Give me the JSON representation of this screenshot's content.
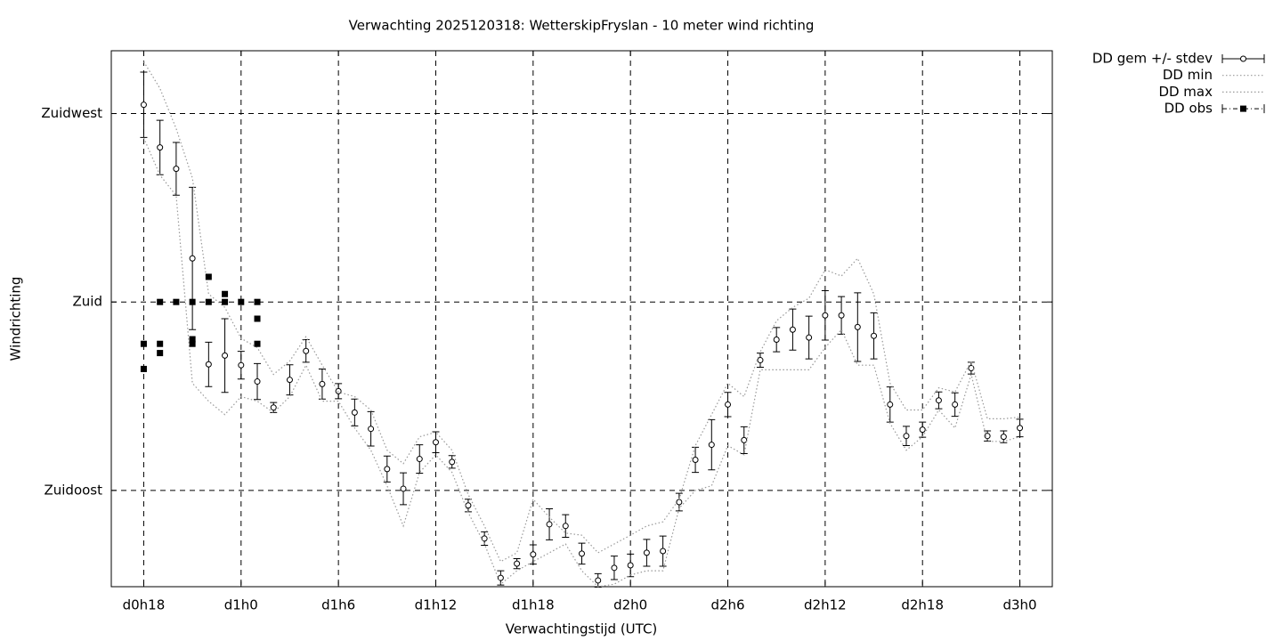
{
  "chart_data": {
    "type": "line",
    "title": "Verwachting 2025120318: WetterskipFryslan - 10 meter wind richting",
    "x_label": "Verwachtingstijd (UTC)",
    "y_label": "Windrichting",
    "xlim": [
      16,
      74
    ],
    "ylim": [
      112,
      240
    ],
    "xticks": [
      {
        "value": 18,
        "label": "d0h18"
      },
      {
        "value": 24,
        "label": "d1h0"
      },
      {
        "value": 30,
        "label": "d1h6"
      },
      {
        "value": 36,
        "label": "d1h12"
      },
      {
        "value": 42,
        "label": "d1h18"
      },
      {
        "value": 48,
        "label": "d2h0"
      },
      {
        "value": 54,
        "label": "d2h6"
      },
      {
        "value": 60,
        "label": "d2h12"
      },
      {
        "value": 66,
        "label": "d2h18"
      },
      {
        "value": 72,
        "label": "d3h0"
      }
    ],
    "yticks": [
      {
        "value": 135,
        "label": "Zuidoost"
      },
      {
        "value": 180,
        "label": "Zuid"
      },
      {
        "value": 225,
        "label": "Zuidwest"
      }
    ],
    "grid": true,
    "legend": "outside-top-right",
    "x": [
      18,
      19,
      20,
      21,
      22,
      23,
      24,
      25,
      26,
      27,
      28,
      29,
      30,
      31,
      32,
      33,
      34,
      35,
      36,
      37,
      38,
      39,
      40,
      41,
      42,
      43,
      44,
      45,
      46,
      47,
      48,
      49,
      50,
      51,
      52,
      53,
      54,
      55,
      56,
      57,
      58,
      59,
      60,
      61,
      62,
      63,
      64,
      65,
      66,
      67,
      68,
      69,
      70,
      71,
      72
    ],
    "series": [
      {
        "name": "DD gem +/- stdev",
        "color": "#000000",
        "style": "errorbars",
        "values": [
          227.1,
          216.9,
          211.8,
          190.4,
          165.1,
          167.2,
          164.9,
          161.0,
          154.8,
          161.4,
          168.3,
          160.4,
          158.7,
          153.6,
          149.7,
          140.1,
          135.4,
          142.5,
          146.5,
          141.8,
          131.4,
          123.5,
          114.1,
          117.5,
          119.7,
          126.9,
          126.5,
          119.9,
          113.5,
          116.5,
          117.1,
          120.1,
          120.5,
          132.2,
          142.3,
          145.9,
          155.5,
          147.0,
          166.1,
          171.0,
          173.4,
          171.5,
          176.8,
          176.8,
          174.0,
          171.9,
          155.5,
          148.0,
          149.5,
          156.5,
          155.5,
          164.2,
          148.0,
          147.8,
          149.9
        ],
        "errors": [
          7.8,
          6.5,
          6.3,
          17,
          5.3,
          8.8,
          3.3,
          4.3,
          1.2,
          3.6,
          2.7,
          3.6,
          1.8,
          3.2,
          4.1,
          3.1,
          3.8,
          3.4,
          2.5,
          1.5,
          1.5,
          1.6,
          1.7,
          1.2,
          2.3,
          3.7,
          2.7,
          2.5,
          1.6,
          2.8,
          2.7,
          3.2,
          3.6,
          2.1,
          3.0,
          6.0,
          2.9,
          3.2,
          1.7,
          2.9,
          4.9,
          5.1,
          5.9,
          4.5,
          8.2,
          5.5,
          4.2,
          2.3,
          1.8,
          2.0,
          2.8,
          1.4,
          1.2,
          1.4,
          2.1
        ]
      },
      {
        "name": "DD min",
        "color": "#999999",
        "style": "dotted",
        "values": [
          219.2,
          210.3,
          205.4,
          160.6,
          156.3,
          153.1,
          157.4,
          156.3,
          153.6,
          157.4,
          164.9,
          156.3,
          156.3,
          149.9,
          144.6,
          136.1,
          126.5,
          139.3,
          143.5,
          139.3,
          129.7,
          122.2,
          112.6,
          115.8,
          118,
          120.1,
          122.2,
          115.8,
          112,
          112.6,
          114.8,
          115.8,
          115.8,
          130.7,
          135,
          136.1,
          145.7,
          143.5,
          163.8,
          163.8,
          163.8,
          163.8,
          169.1,
          173.4,
          164.9,
          164.9,
          151,
          144.6,
          147.8,
          154.2,
          149.9,
          162.7,
          146.7,
          146.7,
          147.8
        ]
      },
      {
        "name": "DD max",
        "color": "#999999",
        "style": "dotted",
        "values": [
          237.4,
          231,
          221.4,
          209.6,
          181.9,
          178.7,
          171.3,
          169.1,
          162.7,
          165.9,
          171.7,
          164.9,
          158.5,
          157.4,
          154.2,
          144.6,
          141.4,
          147.8,
          148.9,
          144.6,
          134,
          126.5,
          118,
          120.1,
          132.9,
          128.6,
          124.8,
          124.3,
          120.1,
          122.2,
          124.3,
          126.5,
          127.5,
          132.9,
          145.7,
          153.1,
          160.6,
          157.4,
          168.1,
          175.5,
          178.7,
          180.9,
          187.7,
          186.2,
          190.4,
          181.9,
          160.6,
          154.2,
          154.2,
          159.5,
          158.5,
          165.9,
          152.1,
          152.1,
          152.5
        ]
      },
      {
        "name": "DD obs",
        "color": "#000000",
        "style": "points",
        "x": [
          18,
          18,
          19,
          19,
          19,
          20,
          21,
          21,
          21,
          22,
          22,
          23,
          23,
          24,
          25,
          25,
          25
        ],
        "values": [
          170.0,
          164.0,
          180,
          170,
          167.8,
          180,
          180,
          171.1,
          170,
          186,
          180,
          181.9,
          180,
          180,
          180,
          176,
          170
        ]
      }
    ]
  }
}
